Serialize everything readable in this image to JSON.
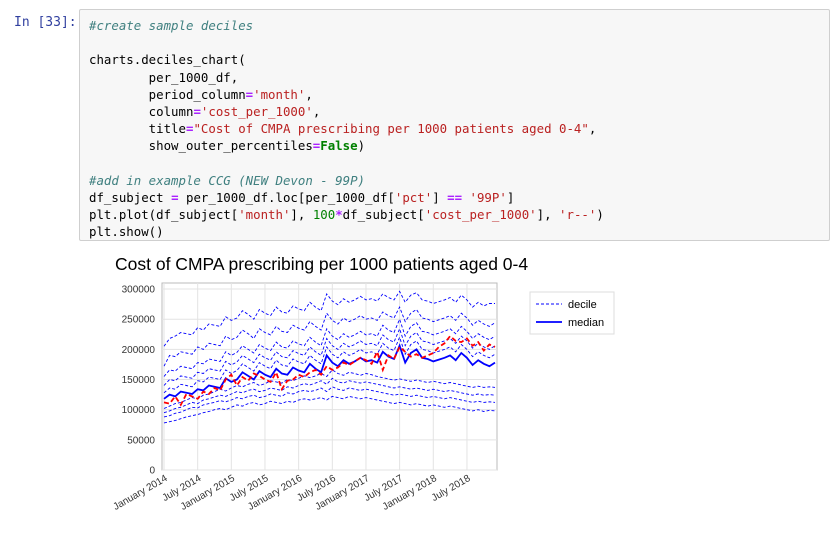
{
  "cell": {
    "prompt": "In [33]:",
    "code_lines": [
      [
        {
          "t": "#create sample deciles",
          "c": "cm"
        }
      ],
      [],
      [
        {
          "t": "charts.deciles_chart(",
          "c": "def"
        }
      ],
      [
        {
          "t": "        per_1000_df,",
          "c": "def"
        }
      ],
      [
        {
          "t": "        period_column",
          "c": "def"
        },
        {
          "t": "=",
          "c": "op"
        },
        {
          "t": "'month'",
          "c": "str"
        },
        {
          "t": ",",
          "c": "def"
        }
      ],
      [
        {
          "t": "        column",
          "c": "def"
        },
        {
          "t": "=",
          "c": "op"
        },
        {
          "t": "'cost_per_1000'",
          "c": "str"
        },
        {
          "t": ",",
          "c": "def"
        }
      ],
      [
        {
          "t": "        title",
          "c": "def"
        },
        {
          "t": "=",
          "c": "op"
        },
        {
          "t": "\"Cost of CMPA prescribing per 1000 patients aged 0-4\"",
          "c": "str"
        },
        {
          "t": ",",
          "c": "def"
        }
      ],
      [
        {
          "t": "        show_outer_percentiles",
          "c": "def"
        },
        {
          "t": "=",
          "c": "op"
        },
        {
          "t": "False",
          "c": "kw"
        },
        {
          "t": ")",
          "c": "def"
        }
      ],
      [],
      [
        {
          "t": "#add in example CCG (NEW Devon - 99P)",
          "c": "cm"
        }
      ],
      [
        {
          "t": "df_subject ",
          "c": "def"
        },
        {
          "t": "=",
          "c": "op"
        },
        {
          "t": " per_1000_df.loc[per_1000_df[",
          "c": "def"
        },
        {
          "t": "'pct'",
          "c": "str"
        },
        {
          "t": "] ",
          "c": "def"
        },
        {
          "t": "==",
          "c": "op"
        },
        {
          "t": " ",
          "c": "def"
        },
        {
          "t": "'99P'",
          "c": "str"
        },
        {
          "t": "]",
          "c": "def"
        }
      ],
      [
        {
          "t": "plt.plot(df_subject[",
          "c": "def"
        },
        {
          "t": "'month'",
          "c": "str"
        },
        {
          "t": "], ",
          "c": "def"
        },
        {
          "t": "100",
          "c": "num"
        },
        {
          "t": "*",
          "c": "op"
        },
        {
          "t": "df_subject[",
          "c": "def"
        },
        {
          "t": "'cost_per_1000'",
          "c": "str"
        },
        {
          "t": "], ",
          "c": "def"
        },
        {
          "t": "'r--'",
          "c": "str"
        },
        {
          "t": ")",
          "c": "def"
        }
      ],
      [
        {
          "t": "plt.show()",
          "c": "def"
        }
      ]
    ]
  },
  "chart_data": {
    "type": "line",
    "title": "Cost of CMPA prescribing per 1000 patients aged 0-4",
    "xlabel": "",
    "ylabel": "",
    "ylim": [
      0,
      310000
    ],
    "yticks": [
      0,
      50000,
      100000,
      150000,
      200000,
      250000,
      300000
    ],
    "x_range_months": [
      "2014-01",
      "2018-12"
    ],
    "xticks": [
      "January 2014",
      "July 2014",
      "January 2015",
      "July 2015",
      "January 2016",
      "July 2016",
      "January 2017",
      "July 2017",
      "January 2018",
      "July 2018"
    ],
    "legend": {
      "placement": "right",
      "entries": [
        "decile",
        "median"
      ]
    },
    "grid": true,
    "colors": {
      "deciles": "#0000ff",
      "median": "#0000ff",
      "subject": "#ff0000"
    },
    "series": [
      {
        "name": "decile",
        "role": "decile",
        "values": [
          78000,
          80000,
          82000,
          85000,
          88000,
          90000,
          92000,
          95000,
          97000,
          100000,
          102000,
          100000,
          104000,
          108000,
          106000,
          110000,
          112000,
          108000,
          110000,
          114000,
          112000,
          110000,
          114000,
          112000,
          116000,
          118000,
          116000,
          118000,
          120000,
          116000,
          122000,
          120000,
          118000,
          122000,
          120000,
          118000,
          120000,
          118000,
          116000,
          114000,
          112000,
          110000,
          112000,
          110000,
          108000,
          110000,
          108000,
          106000,
          108000,
          106000,
          104000,
          106000,
          104000,
          102000,
          100000,
          98000,
          100000,
          97000,
          99000,
          98000
        ]
      },
      {
        "name": "decile",
        "role": "decile",
        "values": [
          88000,
          90000,
          94000,
          96000,
          100000,
          104000,
          103000,
          108000,
          110000,
          112000,
          115000,
          113000,
          116000,
          120000,
          118000,
          122000,
          124000,
          120000,
          122000,
          126000,
          124000,
          122000,
          128000,
          126000,
          130000,
          132000,
          130000,
          132000,
          136000,
          130000,
          138000,
          134000,
          132000,
          136000,
          134000,
          132000,
          134000,
          132000,
          130000,
          128000,
          126000,
          124000,
          126000,
          124000,
          122000,
          124000,
          122000,
          120000,
          122000,
          120000,
          118000,
          120000,
          118000,
          116000,
          114000,
          112000,
          114000,
          112000,
          113000,
          112000
        ]
      },
      {
        "name": "decile",
        "role": "decile",
        "values": [
          95000,
          98000,
          102000,
          104000,
          108000,
          112000,
          110000,
          116000,
          118000,
          121000,
          124000,
          122000,
          126000,
          130000,
          128000,
          132000,
          134000,
          130000,
          132000,
          136000,
          134000,
          132000,
          138000,
          136000,
          140000,
          143000,
          141000,
          144000,
          148000,
          142000,
          152000,
          146000,
          144000,
          148000,
          146000,
          144000,
          146000,
          144000,
          142000,
          140000,
          138000,
          136000,
          138000,
          136000,
          134000,
          136000,
          134000,
          132000,
          134000,
          132000,
          130000,
          132000,
          130000,
          128000,
          126000,
          124000,
          126000,
          124000,
          125000,
          124000
        ]
      },
      {
        "name": "decile",
        "role": "decile",
        "values": [
          102000,
          106000,
          110000,
          112000,
          116000,
          120000,
          118000,
          124000,
          126000,
          130000,
          134000,
          131000,
          136000,
          140000,
          138000,
          142000,
          145000,
          140000,
          143000,
          148000,
          146000,
          144000,
          150000,
          148000,
          152000,
          156000,
          153000,
          156000,
          160000,
          155000,
          166000,
          160000,
          157000,
          162000,
          160000,
          157000,
          160000,
          158000,
          155000,
          153000,
          151000,
          149000,
          151000,
          149000,
          147000,
          149000,
          147000,
          145000,
          147000,
          145000,
          143000,
          145000,
          143000,
          141000,
          139000,
          137000,
          139000,
          137000,
          138000,
          137000
        ]
      },
      {
        "name": "median",
        "role": "median",
        "values": [
          118000,
          125000,
          122000,
          130000,
          128000,
          126000,
          134000,
          132000,
          140000,
          138000,
          136000,
          152000,
          146000,
          150000,
          162000,
          156000,
          150000,
          164000,
          158000,
          154000,
          168000,
          160000,
          158000,
          170000,
          165000,
          162000,
          176000,
          168000,
          162000,
          190000,
          178000,
          172000,
          182000,
          176000,
          180000,
          186000,
          180000,
          182000,
          178000,
          196000,
          188000,
          184000,
          206000,
          178000,
          194000,
          200000,
          186000,
          184000,
          180000,
          183000,
          186000,
          190000,
          182000,
          194000,
          186000,
          174000,
          182000,
          176000,
          172000,
          178000
        ]
      },
      {
        "name": "decile",
        "role": "decile",
        "values": [
          128000,
          136000,
          134000,
          142000,
          140000,
          138000,
          148000,
          146000,
          154000,
          152000,
          150000,
          166000,
          160000,
          165000,
          176000,
          170000,
          164000,
          178000,
          172000,
          168000,
          182000,
          174000,
          172000,
          184000,
          179000,
          176000,
          190000,
          182000,
          176000,
          204000,
          192000,
          186000,
          196000,
          190000,
          194000,
          200000,
          194000,
          196000,
          192000,
          210000,
          202000,
          198000,
          220000,
          192000,
          208000,
          214000,
          200000,
          198000,
          194000,
          197000,
          200000,
          204000,
          196000,
          208000,
          200000,
          188000,
          196000,
          190000,
          186000,
          192000
        ]
      },
      {
        "name": "decile",
        "role": "decile",
        "values": [
          140000,
          150000,
          148000,
          156000,
          154000,
          152000,
          162000,
          160000,
          168000,
          166000,
          164000,
          180000,
          174000,
          179000,
          190000,
          184000,
          178000,
          192000,
          186000,
          182000,
          196000,
          188000,
          186000,
          198000,
          193000,
          190000,
          204000,
          196000,
          190000,
          218000,
          206000,
          200000,
          210000,
          204000,
          208000,
          214000,
          208000,
          210000,
          206000,
          224000,
          216000,
          212000,
          234000,
          206000,
          222000,
          228000,
          214000,
          212000,
          208000,
          211000,
          214000,
          218000,
          210000,
          222000,
          214000,
          202000,
          210000,
          204000,
          200000,
          206000
        ]
      },
      {
        "name": "decile",
        "role": "decile",
        "values": [
          155000,
          166000,
          164000,
          172000,
          170000,
          168000,
          178000,
          176000,
          184000,
          182000,
          180000,
          196000,
          190000,
          195000,
          206000,
          200000,
          194000,
          208000,
          202000,
          198000,
          212000,
          204000,
          202000,
          214000,
          209000,
          206000,
          220000,
          212000,
          206000,
          234000,
          222000,
          216000,
          226000,
          220000,
          224000,
          230000,
          224000,
          226000,
          222000,
          240000,
          232000,
          228000,
          250000,
          222000,
          238000,
          244000,
          230000,
          228000,
          224000,
          227000,
          230000,
          234000,
          226000,
          238000,
          230000,
          218000,
          226000,
          220000,
          216000,
          222000
        ]
      },
      {
        "name": "decile",
        "role": "decile",
        "values": [
          172000,
          190000,
          188000,
          196000,
          194000,
          192000,
          204000,
          200000,
          210000,
          208000,
          206000,
          222000,
          216000,
          220000,
          232000,
          226000,
          218000,
          234000,
          228000,
          224000,
          238000,
          230000,
          228000,
          240000,
          235000,
          232000,
          246000,
          238000,
          232000,
          260000,
          248000,
          242000,
          252000,
          246000,
          250000,
          256000,
          250000,
          252000,
          248000,
          262000,
          256000,
          252000,
          270000,
          246000,
          260000,
          266000,
          252000,
          250000,
          246000,
          249000,
          252000,
          256000,
          248000,
          260000,
          252000,
          240000,
          248000,
          242000,
          238000,
          244000
        ]
      },
      {
        "name": "decile",
        "role": "decile",
        "values": [
          205000,
          218000,
          222000,
          228000,
          226000,
          224000,
          236000,
          232000,
          242000,
          240000,
          238000,
          254000,
          248000,
          252000,
          264000,
          258000,
          250000,
          266000,
          260000,
          256000,
          270000,
          262000,
          260000,
          272000,
          267000,
          264000,
          278000,
          270000,
          264000,
          292000,
          280000,
          274000,
          284000,
          278000,
          282000,
          288000,
          282000,
          284000,
          280000,
          292000,
          286000,
          282000,
          296000,
          278000,
          290000,
          294000,
          282000,
          280000,
          276000,
          279000,
          282000,
          286000,
          278000,
          290000,
          282000,
          270000,
          278000,
          272000,
          276000,
          276000
        ]
      },
      {
        "name": "",
        "role": "subject",
        "values": [
          112000,
          110000,
          122000,
          108000,
          126000,
          122000,
          118000,
          130000,
          126000,
          136000,
          132000,
          150000,
          158000,
          140000,
          154000,
          148000,
          160000,
          156000,
          150000,
          146000,
          162000,
          134000,
          148000,
          150000,
          158000,
          154000,
          162000,
          166000,
          158000,
          172000,
          166000,
          170000,
          178000,
          174000,
          180000,
          186000,
          182000,
          176000,
          196000,
          166000,
          190000,
          184000,
          204000,
          196000,
          188000,
          192000,
          186000,
          190000,
          194000,
          204000,
          210000,
          222000,
          214000,
          212000,
          218000,
          206000,
          212000,
          198000,
          208000,
          204000
        ]
      }
    ]
  }
}
